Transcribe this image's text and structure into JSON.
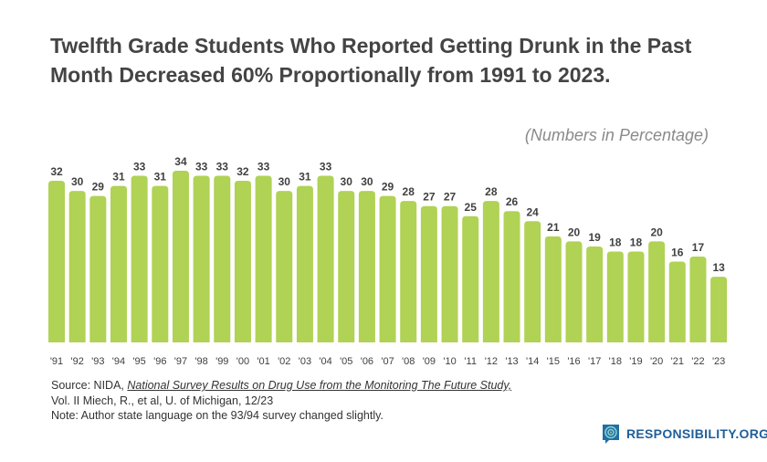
{
  "title": "Twelfth Grade Students Who Reported Getting Drunk in the Past Month Decreased 60% Proportionally from 1991 to 2023.",
  "unit_note": "(Numbers in Percentage)",
  "source": {
    "prefix": "Source: NIDA, ",
    "link": "National Survey Results on Drug Use from the Monitoring The Future Study,",
    "line2": "Vol. II Miech, R., et al, U. of Michigan, 12/23",
    "note": "Note: Author state language on the 93/94 survey changed slightly."
  },
  "logo": {
    "text": "RESPONSIBILITY.ORG"
  },
  "colors": {
    "bar": "#b0d255",
    "text": "#404040",
    "logo": "#1f5f9a"
  },
  "chart_data": {
    "type": "bar",
    "categories": [
      "'91",
      "'92",
      "'93",
      "'94",
      "'95",
      "'96",
      "'97",
      "'98",
      "'99",
      "'00",
      "'01",
      "'02",
      "'03",
      "'04",
      "'05",
      "'06",
      "'07",
      "'08",
      "'09",
      "'10",
      "'11",
      "'12",
      "'13",
      "'14",
      "'15",
      "'16",
      "'17",
      "'18",
      "'19",
      "'20",
      "'21",
      "'22",
      "'23"
    ],
    "values": [
      32,
      30,
      29,
      31,
      33,
      31,
      34,
      33,
      33,
      32,
      33,
      30,
      31,
      33,
      30,
      30,
      29,
      28,
      27,
      27,
      25,
      28,
      26,
      24,
      21,
      20,
      19,
      18,
      18,
      20,
      16,
      17,
      13
    ],
    "ylim": [
      0,
      34
    ],
    "grid": false,
    "data_labels": true
  }
}
